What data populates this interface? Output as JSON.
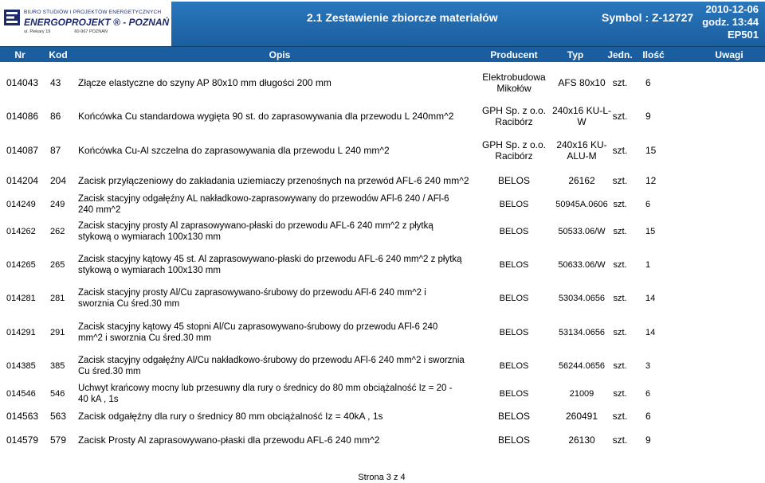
{
  "header": {
    "logo": {
      "line1": "BIURO STUDIÓW I PROJEKTÓW ENERGETYCZNYCH",
      "line2": "ENERGOPROJEKT ® - POZNAŃ SA",
      "line3_street": "ul. Piekary 19",
      "line3_postcode": "60-967 POZNAŃ"
    },
    "title": "2.1 Zestawienie zbiorcze materiałów",
    "symbol": "Symbol : Z-12727",
    "date": "2010-12-06",
    "time": "godz. 13:44",
    "code": "EP501"
  },
  "columns": [
    "Nr",
    "Kod",
    "Opis",
    "Producent",
    "Typ",
    "Jedn.",
    "Ilość",
    "Uwagi"
  ],
  "rows": [
    {
      "nr": "014043",
      "kod": "43",
      "opis": "Złącze elastyczne do szyny AP 80x10 mm długości 200 mm",
      "producent": "Elektrobudowa Mikołów",
      "typ": "AFS 80x10",
      "jedn": "szt.",
      "ilosc": "6"
    },
    {
      "nr": "014086",
      "kod": "86",
      "opis": "Końcówka Cu standardowa wygięta 90 st. do zaprasowywania dla przewodu L 240mm^2",
      "producent": "GPH Sp. z o.o. Racibórz",
      "typ": "240x16 KU-L-W",
      "jedn": "szt.",
      "ilosc": "9"
    },
    {
      "nr": "014087",
      "kod": "87",
      "opis": "Końcówka Cu-Al szczelna do zaprasowywania dla przewodu L 240 mm^2",
      "producent": "GPH Sp. z o.o. Racibórz",
      "typ": "240x16 KU-ALU-M",
      "jedn": "szt.",
      "ilosc": "15"
    },
    {
      "nr": "014204",
      "kod": "204",
      "opis": "Zacisk przyłączeniowy do zakładania uziemiaczy przenośnych na przewód AFL-6 240 mm^2",
      "producent": "BELOS",
      "typ": "26162",
      "jedn": "szt.",
      "ilosc": "12"
    },
    {
      "nr": "014249",
      "kod": "249",
      "opis": "Zacisk stacyjny odgałęźny AL nakładkowo-zaprasowywany do przewodów AFl-6 240 / AFl-6 240 mm^2",
      "producent": "BELOS",
      "typ": "50945A.0606",
      "jedn": "szt.",
      "ilosc": "6"
    },
    {
      "nr": "014262",
      "kod": "262",
      "opis": "Zacisk stacyjny prosty Al zaprasowywano-płaski do przewodu AFL-6 240 mm^2 z płytką stykową o wymiarach 100x130 mm",
      "producent": "BELOS",
      "typ": "50533.06/W",
      "jedn": "szt.",
      "ilosc": "15"
    },
    {
      "nr": "014265",
      "kod": "265",
      "opis": "Zacisk stacyjny kątowy 45 st. Al zaprasowywano-płaski do przewodu AFL-6 240 mm^2 z płytką stykową o wymiarach 100x130 mm",
      "producent": "BELOS",
      "typ": "50633.06/W",
      "jedn": "szt.",
      "ilosc": "1"
    },
    {
      "nr": "014281",
      "kod": "281",
      "opis": "Zacisk stacyjny prosty Al/Cu zaprasowywano-śrubowy do przewodu AFl-6 240 mm^2 i sworznia Cu śred.30 mm",
      "producent": "BELOS",
      "typ": "53034.0656",
      "jedn": "szt.",
      "ilosc": "14"
    },
    {
      "nr": "014291",
      "kod": "291",
      "opis": "Zacisk stacyjny kątowy 45 stopni Al/Cu zaprasowywano-śrubowy do przewodu AFl-6 240 mm^2 i sworznia Cu śred.30 mm",
      "producent": "BELOS",
      "typ": "53134.0656",
      "jedn": "szt.",
      "ilosc": "14"
    },
    {
      "nr": "014385",
      "kod": "385",
      "opis": "Zacisk stacyjny odgałęźny Al/Cu nakładkowo-śrubowy do przewodu AFl-6 240 mm^2 i sworznia Cu śred.30 mm",
      "producent": "BELOS",
      "typ": "56244.0656",
      "jedn": "szt.",
      "ilosc": "3"
    },
    {
      "nr": "014546",
      "kod": "546",
      "opis": "Uchwyt krańcowy mocny lub przesuwny dla rury o średnicy do 80 mm obciążalność Iz = 20 - 40 kA , 1s",
      "producent": "BELOS",
      "typ": "21009",
      "jedn": "szt.",
      "ilosc": "6"
    },
    {
      "nr": "014563",
      "kod": "563",
      "opis": "Zacisk odgałęźny dla rury o średnicy 80 mm obciążalność Iz = 40kA , 1s",
      "producent": "BELOS",
      "typ": "260491",
      "jedn": "szt.",
      "ilosc": "6"
    },
    {
      "nr": "014579",
      "kod": "579",
      "opis": "Zacisk Prosty Al zaprasowywano-płaski dla przewodu AFL-6 240 mm^2",
      "producent": "BELOS",
      "typ": "26130",
      "jedn": "szt.",
      "ilosc": "9"
    }
  ],
  "footer": {
    "page": "Strona 3 z 4"
  },
  "colors": {
    "header_band": "#1a5e9f",
    "logo_text": "#1d2a6d"
  }
}
